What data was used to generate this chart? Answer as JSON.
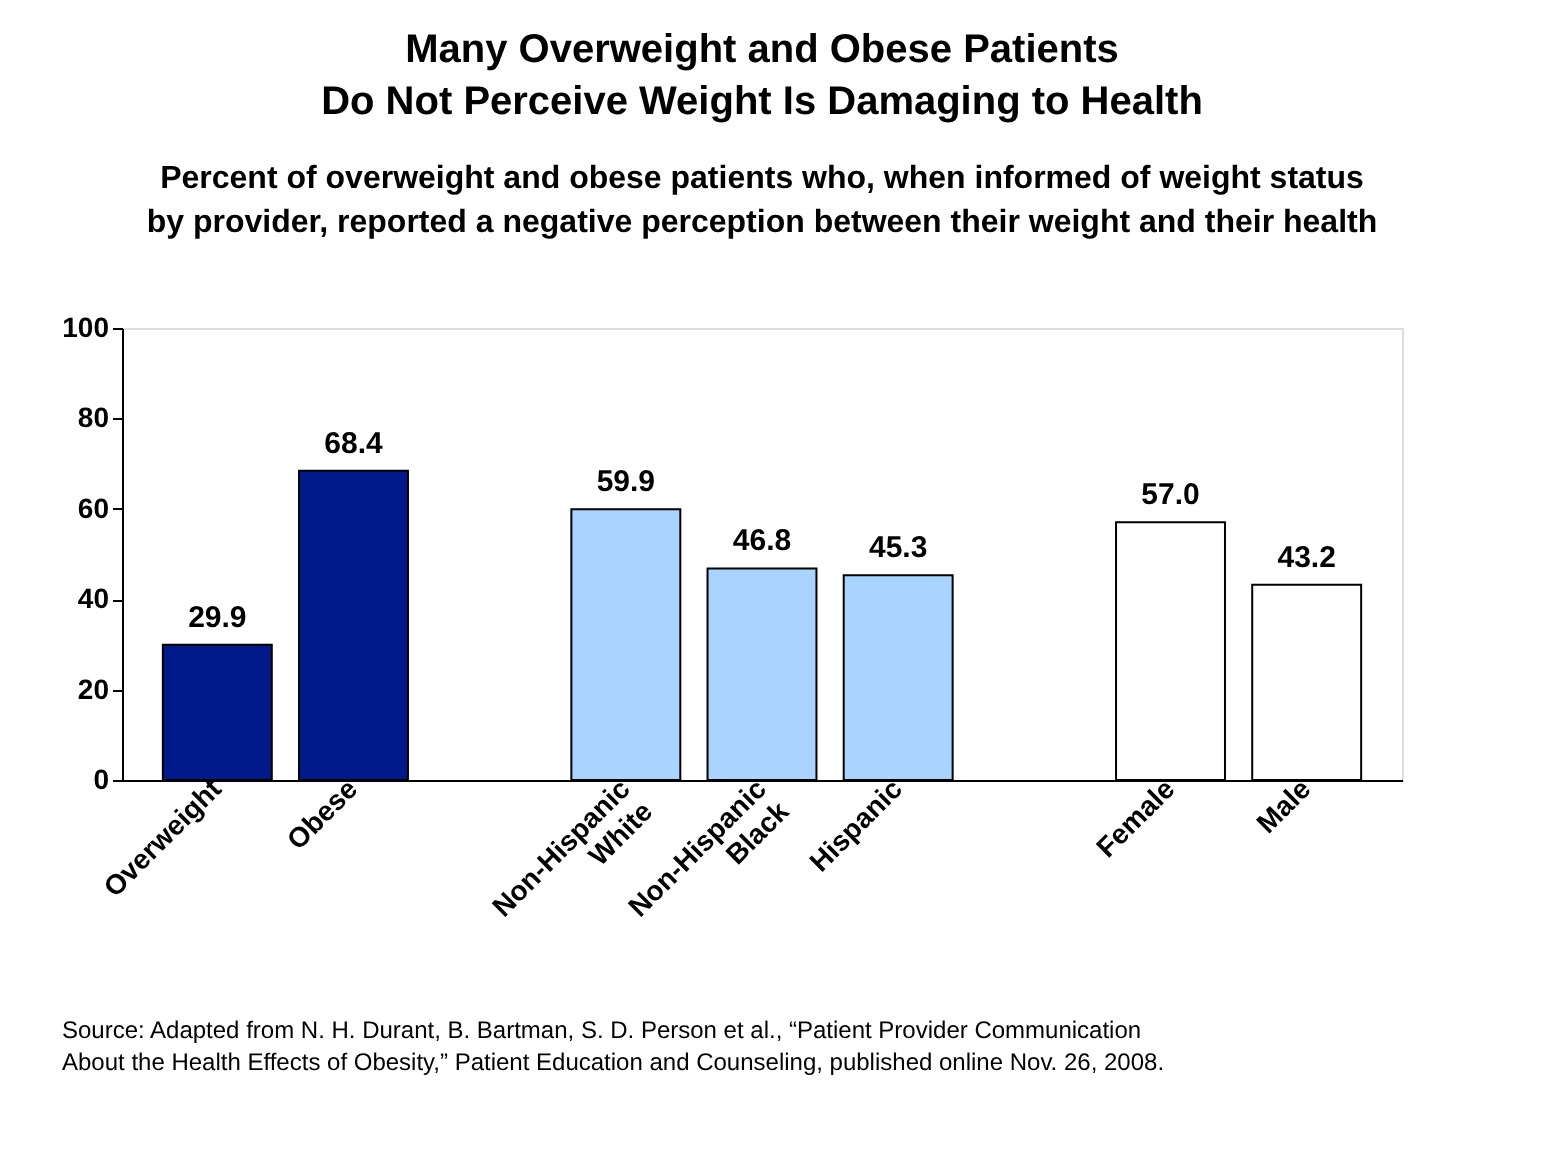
{
  "chart_data": {
    "type": "bar",
    "title": "Many Overweight and Obese Patients\nDo Not Perceive Weight Is Damaging to Health",
    "subtitle": "Percent of overweight and obese patients who, when informed of weight status\nby provider, reported a negative perception between their weight and their health",
    "categories": [
      "Overweight",
      "Obese",
      null,
      "Non-Hispanic White",
      "Non-Hispanic Black",
      "Hispanic",
      null,
      "Female",
      "Male"
    ],
    "values": [
      29.9,
      68.4,
      null,
      59.9,
      46.8,
      45.3,
      null,
      57.0,
      43.2
    ],
    "value_labels": [
      "29.9",
      "68.4",
      null,
      "59.9",
      "46.8",
      "45.3",
      null,
      "57.0",
      "43.2"
    ],
    "colors": [
      "#001a8c",
      "#001a8c",
      null,
      "#a8d4ff",
      "#a8d4ff",
      "#a8d4ff",
      null,
      "#ffffff",
      "#ffffff"
    ],
    "ylim": [
      0,
      100
    ],
    "yticks": [
      0,
      20,
      40,
      60,
      80,
      100
    ],
    "grid": false,
    "annotations": [
      "Source: Adapted from N. H. Durant, B. Bartman, S. D. Person et al., “Patient Provider Communication\nAbout the Health Effects of Obesity,” Patient Education and Counseling, published online Nov. 26, 2008."
    ]
  }
}
